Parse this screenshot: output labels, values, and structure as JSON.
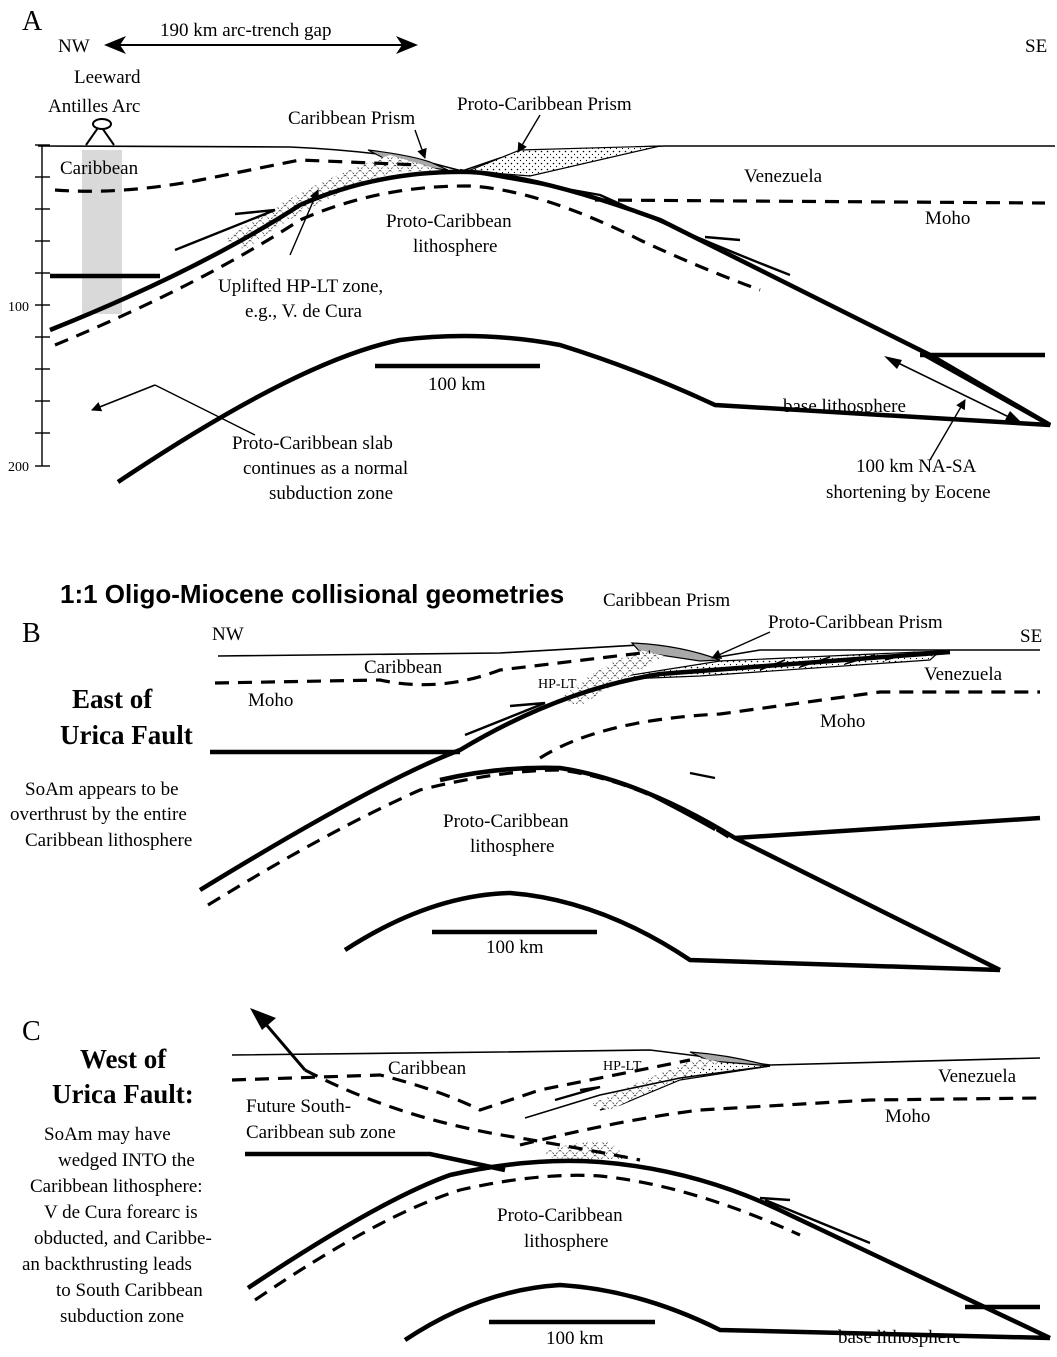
{
  "panel_a": {
    "letter": "A",
    "nw": "NW",
    "se": "SE",
    "gap_label": "190 km arc-trench gap",
    "arc_label_1": "Leeward",
    "arc_label_2": "Antilles Arc",
    "caribbean": "Caribbean",
    "caribbean_prism": "Caribbean Prism",
    "proto_prism": "Proto-Caribbean Prism",
    "venezuela": "Venezuela",
    "moho": "Moho",
    "proto_litho_1": "Proto-Caribbean",
    "proto_litho_2": "lithosphere",
    "hplt_1": "Uplifted HP-LT zone,",
    "hplt_2": "e.g., V. de Cura",
    "scale": "100 km",
    "base_litho": "base lithosphere",
    "slab_1": "Proto-Caribbean slab",
    "slab_2": "continues as a normal",
    "slab_3": "subduction zone",
    "short_1": "100 km NA-SA",
    "short_2": "shortening by Eocene",
    "depth_100": "100",
    "depth_200": "200"
  },
  "heading": "1:1 Oligo-Miocene collisional geometries",
  "panel_b": {
    "letter": "B",
    "nw": "NW",
    "se": "SE",
    "caribbean_prism": "Caribbean Prism",
    "proto_prism": "Proto-Caribbean Prism",
    "caribbean": "Caribbean",
    "venezuela": "Venezuela",
    "moho_left": "Moho",
    "moho_right": "Moho",
    "hplt": "HP-LT",
    "side_1": "East of",
    "side_2": "Urica Fault",
    "note_1": "SoAm appears to be",
    "note_2": "overthrust by the entire",
    "note_3": "Caribbean lithosphere",
    "proto_litho_1": "Proto-Caribbean",
    "proto_litho_2": "lithosphere",
    "scale": "100 km"
  },
  "panel_c": {
    "letter": "C",
    "side_1": "West of",
    "side_2": "Urica Fault:",
    "caribbean": "Caribbean",
    "hplt": "HP-LT",
    "venezuela": "Venezuela",
    "moho": "Moho",
    "future_1": "Future South-",
    "future_2": "Caribbean sub zone",
    "note_1": "SoAm may have",
    "note_2": "wedged INTO the",
    "note_3": "Caribbean lithosphere:",
    "note_4": "V de Cura forearc is",
    "note_5": "obducted, and Caribbe-",
    "note_6": "an backthrusting leads",
    "note_7": "to South Caribbean",
    "note_8": "subduction zone",
    "proto_litho_1": "Proto-Caribbean",
    "proto_litho_2": "lithosphere",
    "scale": "100 km",
    "base_litho": "base lithosphere"
  }
}
